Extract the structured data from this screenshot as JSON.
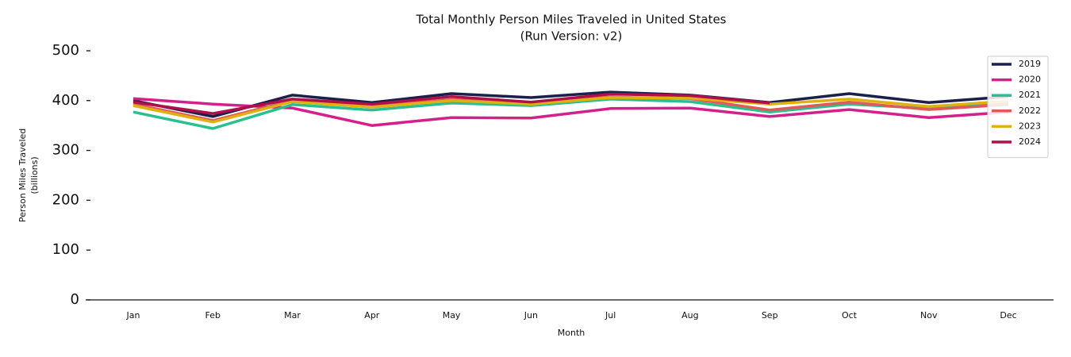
{
  "chart_data": {
    "type": "line",
    "title": "Total Monthly Person Miles Traveled in United States",
    "subtitle": "(Run Version: v2)",
    "xlabel": "Month",
    "ylabel": [
      "Person Miles Traveled",
      "(billions)"
    ],
    "categories": [
      "Jan",
      "Feb",
      "Mar",
      "Apr",
      "May",
      "Jun",
      "Jul",
      "Aug",
      "Sep",
      "Oct",
      "Nov",
      "Dec"
    ],
    "ylim": [
      0,
      500
    ],
    "yticks": [
      0,
      100,
      200,
      300,
      400,
      500
    ],
    "legend": "upper right",
    "series": [
      {
        "name": "2019",
        "color": "#1b1f4b",
        "values": [
          400,
          368,
          411,
          396,
          414,
          406,
          417,
          411,
          396,
          414,
          396,
          408
        ]
      },
      {
        "name": "2020",
        "color": "#d4208a",
        "values": [
          404,
          393,
          385,
          350,
          366,
          365,
          384,
          385,
          368,
          382,
          366,
          377
        ]
      },
      {
        "name": "2021",
        "color": "#2abf8f",
        "values": [
          377,
          344,
          392,
          381,
          395,
          390,
          403,
          398,
          377,
          393,
          384,
          395
        ]
      },
      {
        "name": "2022",
        "color": "#e05a5a",
        "values": [
          393,
          360,
          400,
          389,
          402,
          396,
          407,
          404,
          381,
          397,
          382,
          392
        ]
      },
      {
        "name": "2023",
        "color": "#e0b010",
        "values": [
          390,
          357,
          398,
          387,
          400,
          393,
          406,
          405,
          393,
          403,
          388,
          399
        ]
      },
      {
        "name": "2024",
        "color": "#b0104a",
        "values": [
          397,
          374,
          403,
          393,
          408,
          397,
          413,
          410,
          395,
          null,
          null,
          null
        ]
      }
    ]
  }
}
